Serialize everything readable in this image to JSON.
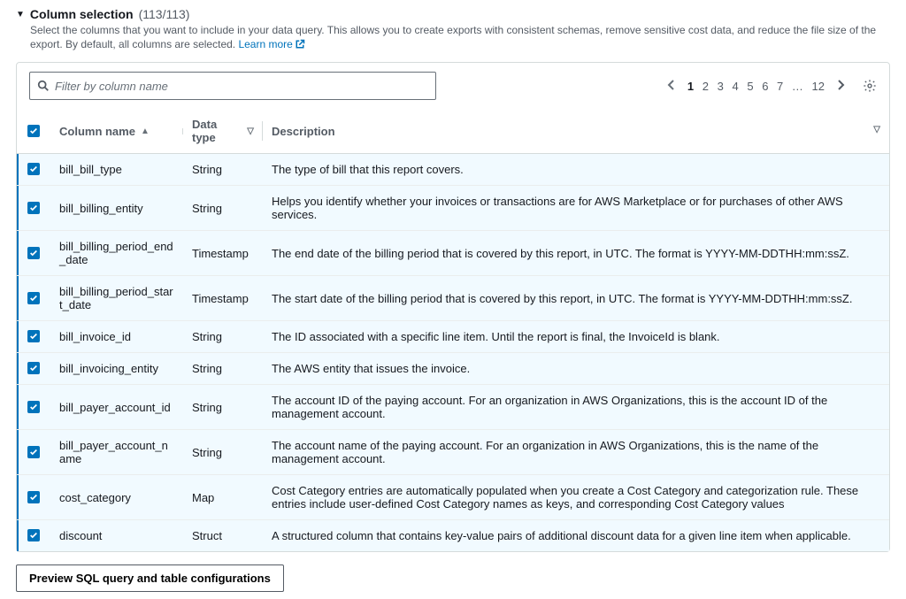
{
  "header": {
    "title": "Column selection",
    "count_display": "(113/113)",
    "subtitle_prefix": "Select the columns that you want to include in your data query. This allows you to create exports with consistent schemas, remove sensitive cost data, and reduce the file size of the export. By default, all columns are selected. ",
    "learn_more_text": "Learn more"
  },
  "search": {
    "placeholder": "Filter by column name",
    "value": ""
  },
  "pagination": {
    "pages": [
      "1",
      "2",
      "3",
      "4",
      "5",
      "6",
      "7",
      "…",
      "12"
    ],
    "current_page": "1"
  },
  "columns": {
    "checkbox_header_checked": true,
    "name_header": "Column name",
    "type_header": "Data type",
    "description_header": "Description"
  },
  "rows": [
    {
      "checked": true,
      "name": "bill_bill_type",
      "type": "String",
      "description": "The type of bill that this report covers."
    },
    {
      "checked": true,
      "name": "bill_billing_entity",
      "type": "String",
      "description": "Helps you identify whether your invoices or transactions are for AWS Marketplace or for purchases of other AWS services."
    },
    {
      "checked": true,
      "name": "bill_billing_period_end_date",
      "type": "Timestamp",
      "description": "The end date of the billing period that is covered by this report, in UTC. The format is YYYY-MM-DDTHH:mm:ssZ."
    },
    {
      "checked": true,
      "name": "bill_billing_period_start_date",
      "type": "Timestamp",
      "description": "The start date of the billing period that is covered by this report, in UTC. The format is YYYY-MM-DDTHH:mm:ssZ."
    },
    {
      "checked": true,
      "name": "bill_invoice_id",
      "type": "String",
      "description": "The ID associated with a specific line item. Until the report is final, the InvoiceId is blank."
    },
    {
      "checked": true,
      "name": "bill_invoicing_entity",
      "type": "String",
      "description": "The AWS entity that issues the invoice."
    },
    {
      "checked": true,
      "name": "bill_payer_account_id",
      "type": "String",
      "description": "The account ID of the paying account. For an organization in AWS Organizations, this is the account ID of the management account."
    },
    {
      "checked": true,
      "name": "bill_payer_account_name",
      "type": "String",
      "description": "The account name of the paying account. For an organization in AWS Organizations, this is the name of the management account."
    },
    {
      "checked": true,
      "name": "cost_category",
      "type": "Map",
      "description": "Cost Category entries are automatically populated when you create a Cost Category and categorization rule. These entries include user-defined Cost Category names as keys, and corresponding Cost Category values"
    },
    {
      "checked": true,
      "name": "discount",
      "type": "Struct",
      "description": "A structured column that contains key-value pairs of additional discount data for a given line item when applicable."
    }
  ],
  "footer": {
    "preview_button_label": "Preview SQL query and table configurations"
  },
  "colors": {
    "link": "#0073bb",
    "row_bg": "#f1faff",
    "border": "#d5dbdb",
    "text_muted": "#545b64"
  }
}
